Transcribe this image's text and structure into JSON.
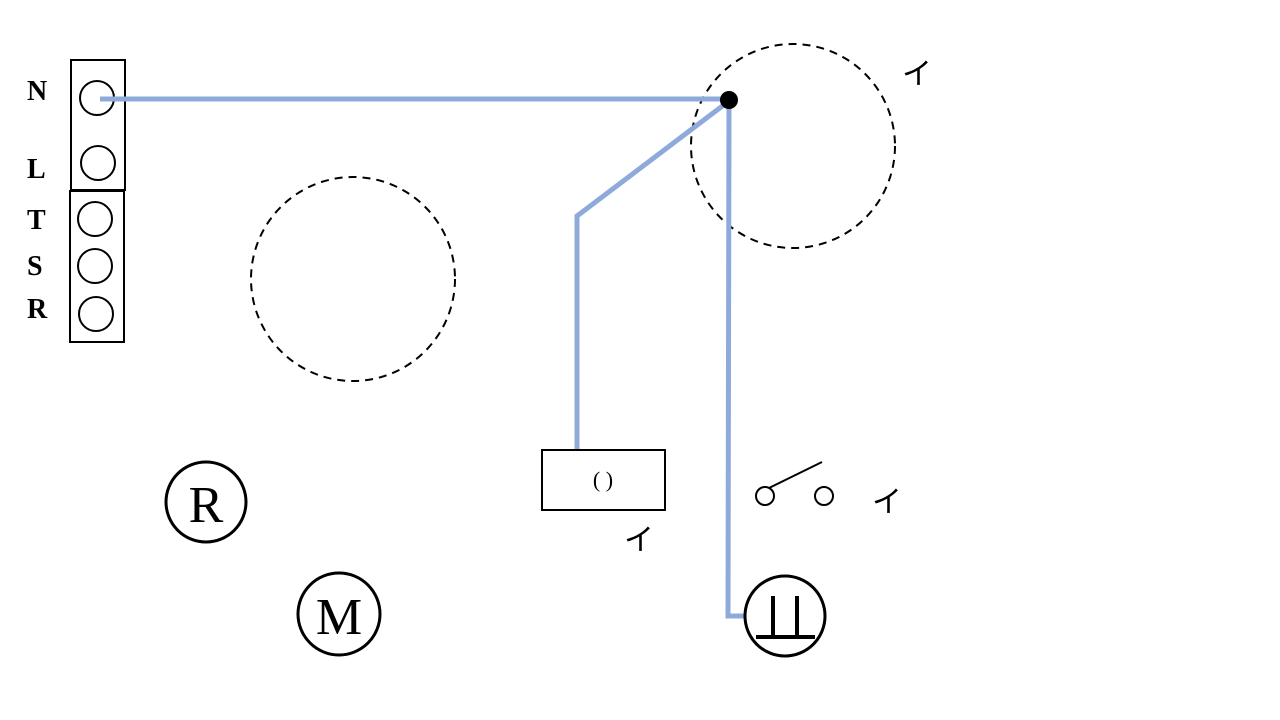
{
  "terminal_block": {
    "labels": [
      "N",
      "L",
      "T",
      "S",
      "R"
    ]
  },
  "symbols": {
    "r_letter": "R",
    "m_letter": "M",
    "lamp_box_text": "( )",
    "kana_top": "イ",
    "kana_switch": "イ",
    "kana_box": "イ"
  },
  "colors": {
    "wire": "#8eaadb",
    "stroke": "#000000"
  }
}
